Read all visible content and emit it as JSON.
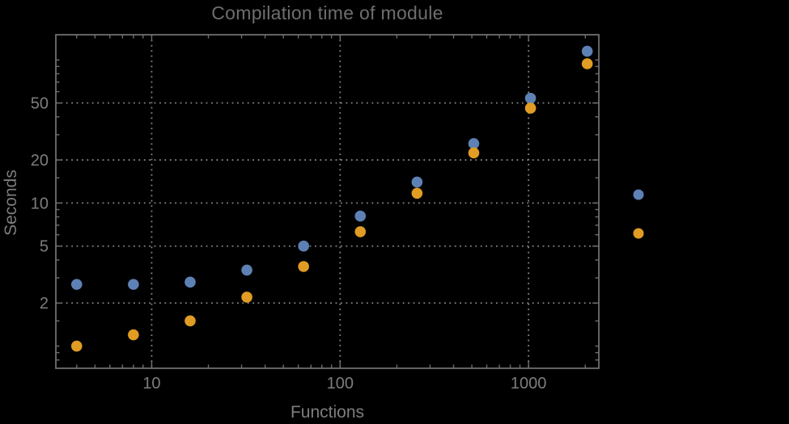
{
  "chart": {
    "title": "Compilation time of module",
    "xlabel": "Functions",
    "ylabel": "Seconds",
    "background_color": "#000000",
    "frame_color": "#6e6e6e",
    "grid_color": "#858585",
    "text_color": "#7d7d7d",
    "y_tick_labels": [
      "50",
      "20",
      "10",
      "5",
      "2"
    ],
    "x_tick_labels": [
      "10",
      "100",
      "1000"
    ]
  },
  "chart_data": {
    "type": "scatter",
    "title": "Compilation time of module",
    "xlabel": "Functions",
    "ylabel": "Seconds",
    "x_scale": "log",
    "y_scale": "log",
    "xlim": [
      3.1,
      2360
    ],
    "ylim": [
      0.7,
      150
    ],
    "grid": "dotted",
    "x": [
      4,
      8,
      16,
      32,
      64,
      128,
      256,
      512,
      1024,
      2048
    ],
    "series": [
      {
        "name": "series-1-blue",
        "color": "#5e81b5",
        "values": [
          2.7,
          2.7,
          2.8,
          3.4,
          5.0,
          8.1,
          14.0,
          26.0,
          54.0,
          115.0
        ]
      },
      {
        "name": "series-2-orange",
        "color": "#e19c24",
        "values": [
          1.0,
          1.2,
          1.5,
          2.2,
          3.6,
          6.3,
          11.7,
          22.4,
          46.0,
          94.0
        ]
      }
    ],
    "x_ticks_major": [
      10,
      100,
      1000
    ],
    "x_ticks_minor": [
      4,
      5,
      6,
      7,
      8,
      9,
      20,
      30,
      40,
      50,
      60,
      70,
      80,
      90,
      200,
      300,
      400,
      500,
      600,
      700,
      800,
      900,
      2000
    ],
    "y_ticks_major": [
      2,
      5,
      10,
      20,
      50
    ],
    "y_ticks_minor": [
      0.8,
      0.9,
      1,
      1.5,
      3,
      4,
      6,
      7,
      8,
      9,
      15,
      30,
      40,
      60,
      70,
      80,
      90,
      100
    ],
    "legend_position": "right-outside"
  },
  "legend": {
    "markers": [
      {
        "series": "series-1-blue",
        "color": "#5e81b5"
      },
      {
        "series": "series-2-orange",
        "color": "#e19c24"
      }
    ]
  }
}
